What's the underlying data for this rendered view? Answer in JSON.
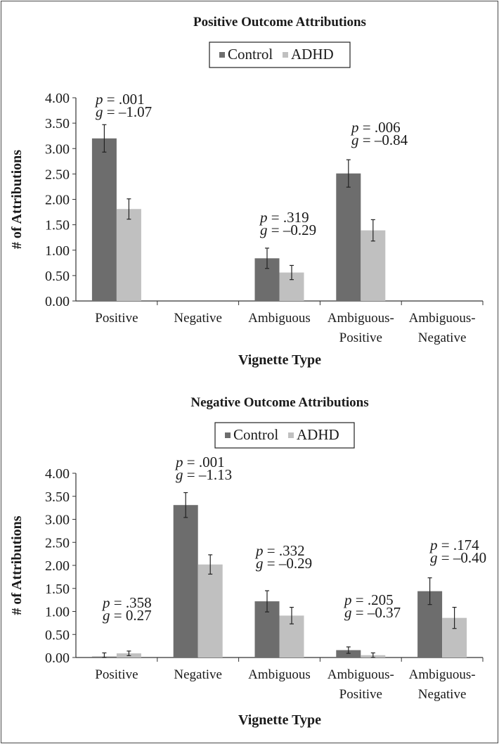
{
  "chart_data": [
    {
      "type": "bar",
      "title": "Positive Outcome Attributions",
      "xlabel": "Vignette Type",
      "ylabel": "# of Attributions",
      "ylim": [
        0,
        4.0
      ],
      "yticks": [
        "0.00",
        "0.50",
        "1.00",
        "1.50",
        "2.00",
        "2.50",
        "3.00",
        "3.50",
        "4.00"
      ],
      "categories": [
        [
          "Positive"
        ],
        [
          "Negative"
        ],
        [
          "Ambiguous"
        ],
        [
          "Ambiguous-",
          "Positive"
        ],
        [
          "Ambiguous-",
          "Negative"
        ]
      ],
      "series": [
        {
          "name": "Control",
          "color": "#6d6d6d",
          "values": [
            3.2,
            null,
            0.84,
            2.51,
            null
          ],
          "errors": [
            0.27,
            null,
            0.2,
            0.27,
            null
          ]
        },
        {
          "name": "ADHD",
          "color": "#c0c0c0",
          "values": [
            1.81,
            null,
            0.56,
            1.39,
            null
          ],
          "errors": [
            0.2,
            null,
            0.14,
            0.21,
            null
          ]
        }
      ],
      "annotations": [
        {
          "category": 0,
          "p": ".001",
          "g": "–1.07"
        },
        {
          "category": 2,
          "p": ".319",
          "g": "–0.29"
        },
        {
          "category": 3,
          "p": ".006",
          "g": "–0.84"
        }
      ],
      "legend": {
        "position": "top-center",
        "labels": [
          "Control",
          "ADHD"
        ]
      },
      "grid": false
    },
    {
      "type": "bar",
      "title": "Negative Outcome Attributions",
      "xlabel": "Vignette Type",
      "ylabel": "# of Attributions",
      "ylim": [
        0,
        4.0
      ],
      "yticks": [
        "0.00",
        "0.50",
        "1.00",
        "1.50",
        "2.00",
        "2.50",
        "3.00",
        "3.50",
        "4.00"
      ],
      "categories": [
        [
          "Positive"
        ],
        [
          "Negative"
        ],
        [
          "Ambiguous"
        ],
        [
          "Ambiguous-",
          "Positive"
        ],
        [
          "Ambiguous-",
          "Negative"
        ]
      ],
      "series": [
        {
          "name": "Control",
          "color": "#6d6d6d",
          "values": [
            0.02,
            3.31,
            1.22,
            0.16,
            1.44
          ],
          "errors": [
            0.08,
            0.27,
            0.23,
            0.07,
            0.29
          ]
        },
        {
          "name": "ADHD",
          "color": "#c0c0c0",
          "values": [
            0.09,
            2.02,
            0.91,
            0.05,
            0.86
          ],
          "errors": [
            0.05,
            0.21,
            0.18,
            0.05,
            0.23
          ]
        }
      ],
      "annotations": [
        {
          "category": 0,
          "p": ".358",
          "g": "0.27"
        },
        {
          "category": 1,
          "p": ".001",
          "g": "–1.13"
        },
        {
          "category": 2,
          "p": ".332",
          "g": "–0.29"
        },
        {
          "category": 3,
          "p": ".205",
          "g": "–0.37"
        },
        {
          "category": 4,
          "p": ".174",
          "g": "–0.40"
        }
      ],
      "legend": {
        "position": "top-center",
        "labels": [
          "Control",
          "ADHD"
        ]
      },
      "grid": false
    }
  ]
}
